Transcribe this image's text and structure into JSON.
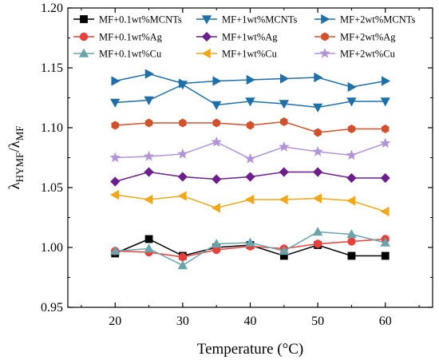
{
  "chart_data": {
    "type": "line",
    "xlabel": "Temperature (°C)",
    "ylabel": {
      "main": "λ",
      "sub1": "HYMF",
      "slash": "/λ",
      "sub2": "MF"
    },
    "xlim": [
      13,
      67
    ],
    "ylim": [
      0.95,
      1.2
    ],
    "xticks": [
      20,
      30,
      40,
      50,
      60
    ],
    "yticks": [
      0.95,
      1.0,
      1.05,
      1.1,
      1.15,
      1.2
    ],
    "x": [
      20,
      25,
      30,
      35,
      40,
      45,
      50,
      55,
      60
    ],
    "legend_position": "top",
    "series": [
      {
        "name": "MF+0.1wt%MCNTs",
        "color": "#000000",
        "marker": "square",
        "values": [
          0.995,
          1.007,
          0.993,
          1.0,
          1.002,
          0.993,
          1.002,
          0.993,
          0.993
        ]
      },
      {
        "name": "MF+1wt%MCNTs",
        "color": "#1f6fa8",
        "marker": "triangle-down",
        "values": [
          1.121,
          1.123,
          1.136,
          1.119,
          1.122,
          1.12,
          1.117,
          1.122,
          1.122
        ]
      },
      {
        "name": "MF+2wt%MCNTs",
        "color": "#1f6fa8",
        "marker": "triangle-right",
        "values": [
          1.139,
          1.145,
          1.137,
          1.139,
          1.14,
          1.141,
          1.142,
          1.134,
          1.139
        ]
      },
      {
        "name": "MF+0.1wt%Ag",
        "color": "#e8403a",
        "marker": "circle",
        "values": [
          0.997,
          0.996,
          0.992,
          0.998,
          1.001,
          0.999,
          1.003,
          1.005,
          1.007
        ]
      },
      {
        "name": "MF+1wt%Ag",
        "color": "#6a1f8c",
        "marker": "diamond",
        "values": [
          1.055,
          1.063,
          1.059,
          1.057,
          1.059,
          1.063,
          1.063,
          1.058,
          1.058
        ]
      },
      {
        "name": "MF+2wt%Ag",
        "color": "#d2512d",
        "marker": "hexagon",
        "values": [
          1.102,
          1.104,
          1.104,
          1.104,
          1.102,
          1.105,
          1.096,
          1.099,
          1.099
        ]
      },
      {
        "name": "MF+0.1wt%Cu",
        "color": "#6aa3aa",
        "marker": "triangle-up",
        "values": [
          0.997,
          0.999,
          0.985,
          1.003,
          1.004,
          0.997,
          1.013,
          1.011,
          1.004
        ]
      },
      {
        "name": "MF+1wt%Cu",
        "color": "#f0a818",
        "marker": "triangle-left",
        "values": [
          1.044,
          1.04,
          1.043,
          1.033,
          1.04,
          1.04,
          1.041,
          1.039,
          1.03
        ]
      },
      {
        "name": "MF+2wt%Cu",
        "color": "#b195d6",
        "marker": "star",
        "values": [
          1.075,
          1.076,
          1.078,
          1.088,
          1.074,
          1.084,
          1.08,
          1.077,
          1.087
        ]
      }
    ]
  }
}
